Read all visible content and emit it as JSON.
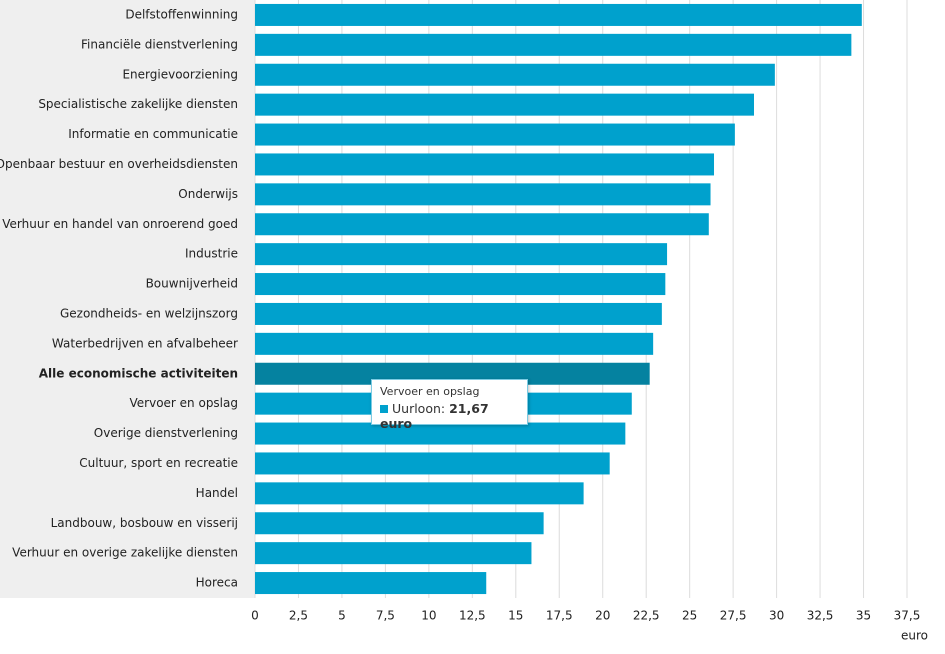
{
  "chart_data": {
    "type": "barh",
    "categories": [
      "Delfstoffenwinning",
      "Financiële dienstverlening",
      "Energievoorziening",
      "Specialistische zakelijke diensten",
      "Informatie en communicatie",
      "Openbaar bestuur en overheidsdiensten",
      "Onderwijs",
      "Verhuur en handel van onroerend goed",
      "Industrie",
      "Bouwnijverheid",
      "Gezondheids- en welzijnszorg",
      "Waterbedrijven en afvalbeheer",
      "Alle economische activiteiten",
      "Vervoer en opslag",
      "Overige dienstverlening",
      "Cultuur, sport en recreatie",
      "Handel",
      "Landbouw, bosbouw en visserij",
      "Verhuur en overige zakelijke diensten",
      "Horeca"
    ],
    "series": [
      {
        "name": "Uurloon",
        "color": "#00a1cd",
        "colors": [
          "#00a1cd",
          "#00a1cd",
          "#00a1cd",
          "#00a1cd",
          "#00a1cd",
          "#00a1cd",
          "#00a1cd",
          "#00a1cd",
          "#00a1cd",
          "#00a1cd",
          "#00a1cd",
          "#00a1cd",
          "#0582a0",
          "#00a1cd",
          "#00a1cd",
          "#00a1cd",
          "#00a1cd",
          "#00a1cd",
          "#00a1cd",
          "#00a1cd"
        ],
        "values": [
          34.9,
          34.3,
          29.9,
          28.7,
          27.6,
          26.4,
          26.2,
          26.1,
          23.7,
          23.6,
          23.4,
          22.9,
          22.7,
          21.67,
          21.3,
          20.4,
          18.9,
          16.6,
          15.9,
          13.3
        ]
      }
    ],
    "xlabel": "euro",
    "xlim": [
      0,
      37.5
    ],
    "xticks": [
      0,
      {
        "value": 2.5,
        "label": "2,5"
      },
      5,
      {
        "value": 7.5,
        "label": "7,5"
      },
      10,
      {
        "value": 12.5,
        "label": "12,5"
      },
      15,
      {
        "value": 17.5,
        "label": "17,5"
      },
      20,
      {
        "value": 22.5,
        "label": "22,5"
      },
      25,
      {
        "value": 27.5,
        "label": "27,5"
      },
      30,
      {
        "value": 32.5,
        "label": "32,5"
      },
      35,
      {
        "value": 37.5,
        "label": "37,5"
      }
    ],
    "grid": true,
    "tooltip": {
      "title": "Vervoer en opslag",
      "label": "Uurloon:",
      "value": "21,67 euro"
    }
  }
}
